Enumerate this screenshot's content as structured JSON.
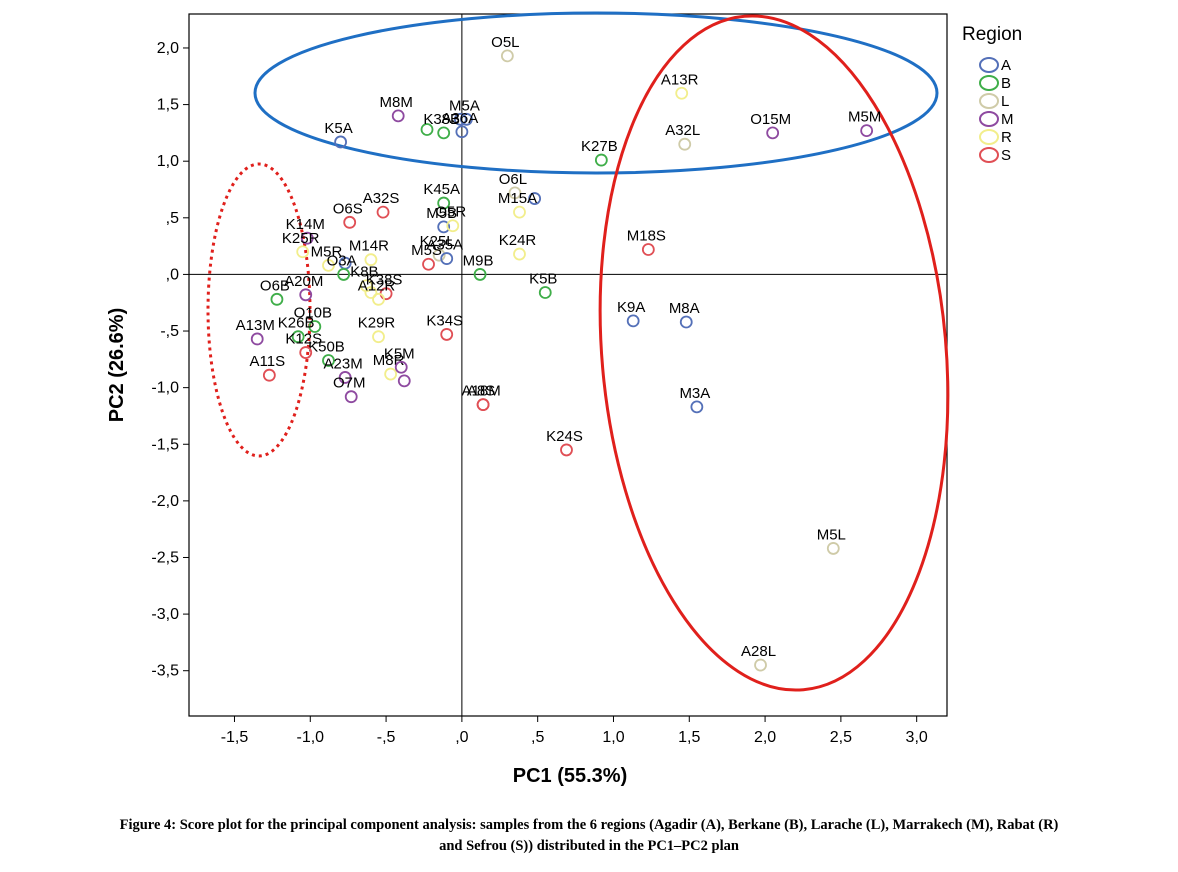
{
  "chart_data": {
    "type": "scatter",
    "xlabel": "PC1 (55.3%)",
    "ylabel": "PC2 (26.6%)",
    "xlim": [
      -1.8,
      3.2
    ],
    "ylim": [
      -3.9,
      2.3
    ],
    "x_ticks": [
      "-1,5",
      "-1,0",
      "-,5",
      ",0",
      ",5",
      "1,0",
      "1,5",
      "2,0",
      "2,5",
      "3,0"
    ],
    "x_tick_values": [
      -1.5,
      -1.0,
      -0.5,
      0.0,
      0.5,
      1.0,
      1.5,
      2.0,
      2.5,
      3.0
    ],
    "y_ticks": [
      "2,0",
      "1,5",
      "1,0",
      ",5",
      ",0",
      "-,5",
      "-1,0",
      "-1,5",
      "-2,0",
      "-2,5",
      "-3,0",
      "-3,5"
    ],
    "y_tick_values": [
      2.0,
      1.5,
      1.0,
      0.5,
      0.0,
      -0.5,
      -1.0,
      -1.5,
      -2.0,
      -2.5,
      -3.0,
      -3.5
    ],
    "reference_lines": {
      "x": 0,
      "y": 0
    },
    "legend": {
      "title": "Region",
      "placement": "right",
      "entries": [
        {
          "label": "A",
          "color": "#5470b8"
        },
        {
          "label": "B",
          "color": "#3fae49"
        },
        {
          "label": "L",
          "color": "#cfcba8"
        },
        {
          "label": "M",
          "color": "#8e4aa0"
        },
        {
          "label": "R",
          "color": "#f2ee8c"
        },
        {
          "label": "S",
          "color": "#e04f55"
        }
      ]
    },
    "points": [
      {
        "label": "O5L",
        "region": "L",
        "x": 0.3,
        "y": 1.93
      },
      {
        "label": "A13R",
        "region": "R",
        "x": 1.45,
        "y": 1.6
      },
      {
        "label": "M8M",
        "region": "M",
        "x": -0.42,
        "y": 1.4
      },
      {
        "label": "M5A",
        "region": "A",
        "x": 0.03,
        "y": 1.37
      },
      {
        "label": "",
        "region": "A",
        "x": -0.01,
        "y": 1.37
      },
      {
        "label": "K5A",
        "region": "A",
        "x": -0.8,
        "y": 1.17
      },
      {
        "label": "",
        "region": "B",
        "x": -0.23,
        "y": 1.28
      },
      {
        "label": "K38B",
        "region": "B",
        "x": -0.12,
        "y": 1.25
      },
      {
        "label": "A36A",
        "region": "A",
        "x": 0.0,
        "y": 1.26
      },
      {
        "label": "K27B",
        "region": "B",
        "x": 0.92,
        "y": 1.01
      },
      {
        "label": "A32L",
        "region": "L",
        "x": 1.47,
        "y": 1.15
      },
      {
        "label": "O15M",
        "region": "M",
        "x": 2.05,
        "y": 1.25
      },
      {
        "label": "M5M",
        "region": "M",
        "x": 2.67,
        "y": 1.27
      },
      {
        "label": "O6L",
        "region": "L",
        "x": 0.35,
        "y": 0.72
      },
      {
        "label": "",
        "region": "A",
        "x": 0.48,
        "y": 0.67
      },
      {
        "label": "A32S",
        "region": "S",
        "x": -0.52,
        "y": 0.55
      },
      {
        "label": "O6S",
        "region": "S",
        "x": -0.74,
        "y": 0.46
      },
      {
        "label": "K45A",
        "region": "B",
        "x": -0.12,
        "y": 0.63
      },
      {
        "label": "M5B",
        "region": "A",
        "x": -0.12,
        "y": 0.42
      },
      {
        "label": "M15A",
        "region": "R",
        "x": 0.38,
        "y": 0.55
      },
      {
        "label": "K14M",
        "region": "M",
        "x": -1.02,
        "y": 0.32
      },
      {
        "label": "O5R",
        "region": "R",
        "x": -0.06,
        "y": 0.43
      },
      {
        "label": "K24R",
        "region": "R",
        "x": 0.38,
        "y": 0.18
      },
      {
        "label": "M18S",
        "region": "S",
        "x": 1.23,
        "y": 0.22
      },
      {
        "label": "K25R",
        "region": "R",
        "x": -1.05,
        "y": 0.2
      },
      {
        "label": "M5R",
        "region": "R",
        "x": -0.88,
        "y": 0.08
      },
      {
        "label": "M14R",
        "region": "R",
        "x": -0.6,
        "y": 0.13
      },
      {
        "label": "K25L",
        "region": "L",
        "x": -0.15,
        "y": 0.17
      },
      {
        "label": "M5S",
        "region": "S",
        "x": -0.22,
        "y": 0.09
      },
      {
        "label": "A35A",
        "region": "A",
        "x": -0.1,
        "y": 0.14
      },
      {
        "label": "",
        "region": "A",
        "x": -0.77,
        "y": 0.1
      },
      {
        "label": "M9B",
        "region": "B",
        "x": 0.12,
        "y": 0.0
      },
      {
        "label": "A20M",
        "region": "M",
        "x": -1.03,
        "y": -0.18
      },
      {
        "label": "O3A",
        "region": "B",
        "x": -0.78,
        "y": 0.0
      },
      {
        "label": "K8B",
        "region": "R",
        "x": -0.63,
        "y": -0.1
      },
      {
        "label": "K38S",
        "region": "S",
        "x": -0.5,
        "y": -0.17
      },
      {
        "label": "",
        "region": "R",
        "x": -0.6,
        "y": -0.16
      },
      {
        "label": "K5B",
        "region": "B",
        "x": 0.55,
        "y": -0.16
      },
      {
        "label": "O6B",
        "region": "B",
        "x": -1.22,
        "y": -0.22
      },
      {
        "label": "A12R",
        "region": "R",
        "x": -0.55,
        "y": -0.22
      },
      {
        "label": "O10B",
        "region": "B",
        "x": -0.97,
        "y": -0.46
      },
      {
        "label": "K34S",
        "region": "S",
        "x": -0.1,
        "y": -0.53
      },
      {
        "label": "K9A",
        "region": "A",
        "x": 1.13,
        "y": -0.41
      },
      {
        "label": "M8A",
        "region": "A",
        "x": 1.48,
        "y": -0.42
      },
      {
        "label": "A13M",
        "region": "M",
        "x": -1.35,
        "y": -0.57
      },
      {
        "label": "K26B",
        "region": "B",
        "x": -1.08,
        "y": -0.55
      },
      {
        "label": "K29R",
        "region": "R",
        "x": -0.55,
        "y": -0.55
      },
      {
        "label": "K50B",
        "region": "B",
        "x": -0.88,
        "y": -0.76
      },
      {
        "label": "K12S",
        "region": "S",
        "x": -1.03,
        "y": -0.69
      },
      {
        "label": "M8R",
        "region": "R",
        "x": -0.47,
        "y": -0.88
      },
      {
        "label": "K5M",
        "region": "M",
        "x": -0.4,
        "y": -0.82
      },
      {
        "label": "A11S",
        "region": "S",
        "x": -1.27,
        "y": -0.89
      },
      {
        "label": "A23M",
        "region": "M",
        "x": -0.77,
        "y": -0.91
      },
      {
        "label": "",
        "region": "M",
        "x": -0.38,
        "y": -0.94
      },
      {
        "label": "O7M",
        "region": "M",
        "x": -0.73,
        "y": -1.08
      },
      {
        "label": "A18M",
        "region": "S",
        "x": 0.14,
        "y": -1.15
      },
      {
        "label": "A8S",
        "region": "S",
        "x": 0.14,
        "y": -1.15
      },
      {
        "label": "M3A",
        "region": "A",
        "x": 1.55,
        "y": -1.17
      },
      {
        "label": "K24S",
        "region": "S",
        "x": 0.69,
        "y": -1.55
      },
      {
        "label": "M5L",
        "region": "L",
        "x": 2.45,
        "y": -2.42
      },
      {
        "label": "A28L",
        "region": "L",
        "x": 1.97,
        "y": -3.45
      }
    ]
  },
  "caption": {
    "line1": "Figure 4: Score plot for the principal component analysis: samples from the 6 regions (Agadir (A), Berkane (B), Larache (L), Marrakech (M), Rabat (R)",
    "line2": "and Sefrou (S)) distributed in the PC1–PC2 plan"
  }
}
